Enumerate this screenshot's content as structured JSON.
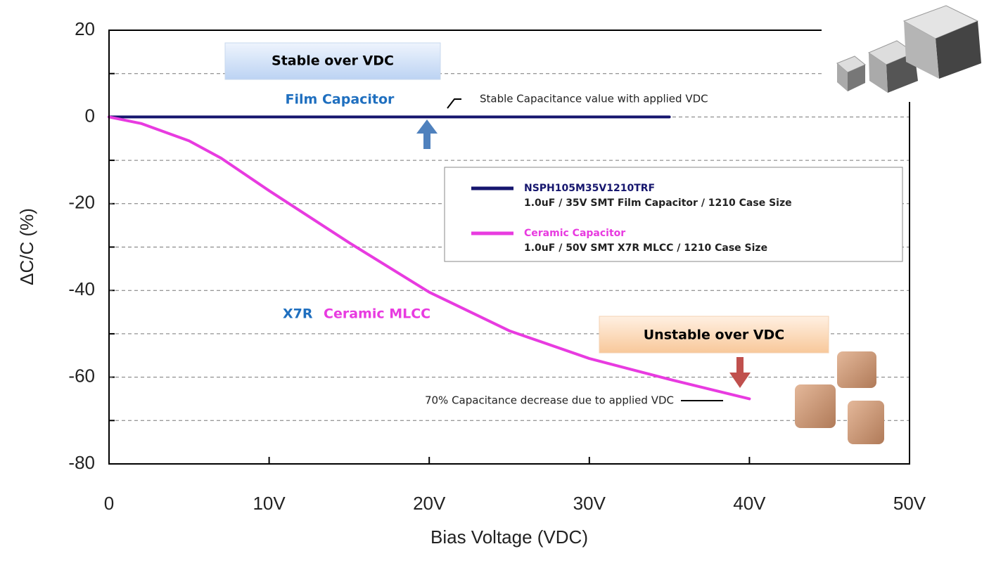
{
  "chart_data": {
    "type": "line",
    "x_label": "Bias Voltage (VDC)",
    "y_label": "ΔC/C (%)",
    "xlim": [
      0,
      50
    ],
    "ylim": [
      -80,
      20
    ],
    "xticks": [
      0,
      {
        "value": 10,
        "label": "10V"
      },
      {
        "value": 20,
        "label": "20V"
      },
      {
        "value": 30,
        "label": "30V"
      },
      {
        "value": 40,
        "label": "40V"
      },
      {
        "value": 50,
        "label": "50V"
      }
    ],
    "yticks": [
      20,
      0,
      -20,
      -40,
      -60,
      -80
    ],
    "grid": true,
    "series": [
      {
        "name": "NSPH105M35V1210TRF",
        "description": "1.0uF  / 35V SMT Film Capacitor / 1210 Case Size",
        "color": "#16166e",
        "x": [
          0,
          5,
          10,
          15,
          20,
          25,
          30,
          35
        ],
        "values": [
          0,
          0,
          0,
          0,
          0,
          0,
          0,
          0
        ]
      },
      {
        "name": "Ceramic Capacitor",
        "description": "1.0uF  / 50V SMT X7R MLCC / 1210 Case Size",
        "color": "#e83be0",
        "x": [
          0,
          2,
          5,
          7,
          10,
          15,
          20,
          25,
          30,
          35,
          40
        ],
        "values": [
          0,
          -1.5,
          -5.5,
          -9.5,
          -17,
          -29,
          -40.4,
          -49.3,
          -55.7,
          -60.5,
          -65
        ]
      }
    ],
    "annotations": [
      "Stable over VDC",
      "Film Capacitor",
      "Stable Capacitance value with applied VDC",
      "X7R",
      "Ceramic MLCC",
      "Unstable over VDC",
      "70% Capacitance decrease due to applied VDC"
    ]
  }
}
